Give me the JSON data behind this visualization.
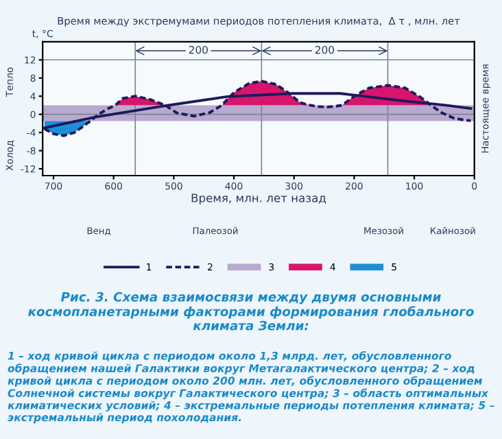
{
  "chart_data": {
    "type": "line",
    "title": "Время между экстремумами периодов потепления климата,  Δ τ , млн. лет",
    "ylabel": "t, °C",
    "xlabel": "Время, млн. лет назад",
    "xlim": [
      718,
      0
    ],
    "xticks": [
      700,
      600,
      500,
      400,
      300,
      200,
      100,
      0
    ],
    "ylim": [
      -13.5,
      16
    ],
    "yticks": [
      12,
      8,
      4,
      0,
      -4,
      -8,
      -12
    ],
    "legend": "bottom",
    "grid": false,
    "series": [
      {
        "name": "1",
        "type": "line",
        "line_style": "solid",
        "color": "#1c1a5c",
        "x": [
          715,
          630,
          514,
          411,
          302,
          223,
          120,
          48,
          6
        ],
        "values": [
          -3,
          -0.6,
          1.9,
          3.9,
          4.6,
          4.6,
          3,
          2,
          1.3
        ]
      },
      {
        "name": "2",
        "type": "line",
        "line_style": "dashed",
        "color": "#1c1a5c",
        "x": [
          715,
          700,
          683,
          665,
          650,
          639,
          625,
          610,
          597,
          585,
          564,
          540,
          514,
          495,
          466,
          440,
          420,
          400,
          375,
          354,
          330,
          310,
          290,
          273,
          260,
          245,
          230,
          220,
          200,
          175,
          144,
          115,
          90,
          72,
          55,
          35,
          15,
          6
        ],
        "values": [
          -3.2,
          -4.3,
          -4.7,
          -4.0,
          -2.6,
          -1.5,
          0.0,
          1.2,
          2.0,
          3.5,
          4.0,
          3.3,
          2.0,
          0.3,
          -0.4,
          0.4,
          2.0,
          4.8,
          6.8,
          7.3,
          6.6,
          4.8,
          2.6,
          2.0,
          1.7,
          1.6,
          1.8,
          2.0,
          4.0,
          5.8,
          6.4,
          5.8,
          3.8,
          2.0,
          0.4,
          -0.8,
          -1.3,
          -1.4
        ]
      },
      {
        "name": "4",
        "type": "area",
        "color": "#d6156c",
        "x": [
          597,
          585,
          564,
          540,
          514,
          470,
          420,
          400,
          375,
          354,
          330,
          310,
          290,
          273,
          250,
          220,
          200,
          175,
          144,
          115,
          90,
          72
        ],
        "values": [
          2.0,
          3.5,
          4.0,
          3.3,
          2.0,
          null,
          2.0,
          4.8,
          6.8,
          7.3,
          6.6,
          4.8,
          2.6,
          2.0,
          null,
          2.0,
          4.0,
          5.8,
          6.4,
          5.8,
          3.8,
          2.0
        ]
      },
      {
        "name": "5",
        "type": "area",
        "color": "#1e8fd6",
        "x": [
          715,
          700,
          683,
          665,
          650,
          639
        ],
        "values": [
          -3.2,
          -4.3,
          -4.7,
          -4.0,
          -2.6,
          -1.5
        ]
      }
    ],
    "bands": [
      {
        "axis": "y",
        "from": -1.5,
        "to": 2,
        "label": "3",
        "color": "#b9a9cf"
      }
    ],
    "ref_lines": [
      {
        "axis": "x",
        "value": 564,
        "label": null
      },
      {
        "axis": "x",
        "value": 354,
        "label": null
      },
      {
        "axis": "x",
        "value": 144,
        "label": null
      },
      {
        "axis": "y",
        "value": 0,
        "label": null
      },
      {
        "axis": "y",
        "value": 12,
        "label": null
      },
      {
        "axis": "x",
        "value": 0,
        "label": "Настоящее время"
      }
    ],
    "annotations": [
      "200",
      "200",
      "Тепло",
      "Холод",
      "Венд",
      "Палеозой",
      "Мезозой",
      "Кайнозой",
      "Рис. 3. Схема взаимосвязи между двумя основными космопланетарными факторами формирования глобального климата Земли:",
      "1 – ход кривой цикла с периодом около 1,3 млрд. лет, обусловленного обращением нашей Галактики вокруг Метагалактического центра; 2 – ход кривой цикла с периодом около 200 млн. лет, обусловленного обращением Солнечной системы вокруг Галактического центра; 3 – область оптимальных климатических условий; 4 – экстремальные периоды потепления климата; 5 – экстремальный период похолодания."
    ]
  }
}
